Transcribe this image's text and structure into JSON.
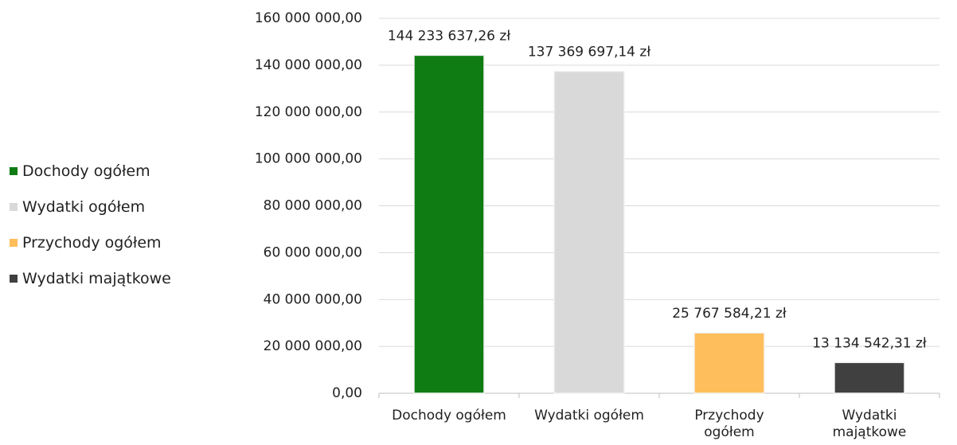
{
  "chart_data": {
    "type": "bar",
    "categories": [
      "Dochody ogółem",
      "Wydatki ogółem",
      "Przychody ogółem",
      "Wydatki majątkowe"
    ],
    "values": [
      144233637.26,
      137369697.14,
      25767584.21,
      13134542.31
    ],
    "value_labels": [
      "144 233 637,26 zł",
      "137 369 697,14 zł",
      "25 767 584,21 zł",
      "13 134 542,31 zł"
    ],
    "colors": [
      "#0e7c12",
      "#d9d9d9",
      "#ffbe5c",
      "#404040"
    ],
    "ylim": [
      0,
      160000000
    ],
    "yticks": [
      {
        "value": 0,
        "label": "0,00"
      },
      {
        "value": 20000000,
        "label": "20 000 000,00"
      },
      {
        "value": 40000000,
        "label": "40 000 000,00"
      },
      {
        "value": 60000000,
        "label": "60 000 000,00"
      },
      {
        "value": 80000000,
        "label": "80 000 000,00"
      },
      {
        "value": 100000000,
        "label": "100 000 000,00"
      },
      {
        "value": 120000000,
        "label": "120 000 000,00"
      },
      {
        "value": 140000000,
        "label": "140 000 000,00"
      },
      {
        "value": 160000000,
        "label": "160 000 000,00"
      }
    ],
    "grid": true,
    "legend": "left"
  }
}
